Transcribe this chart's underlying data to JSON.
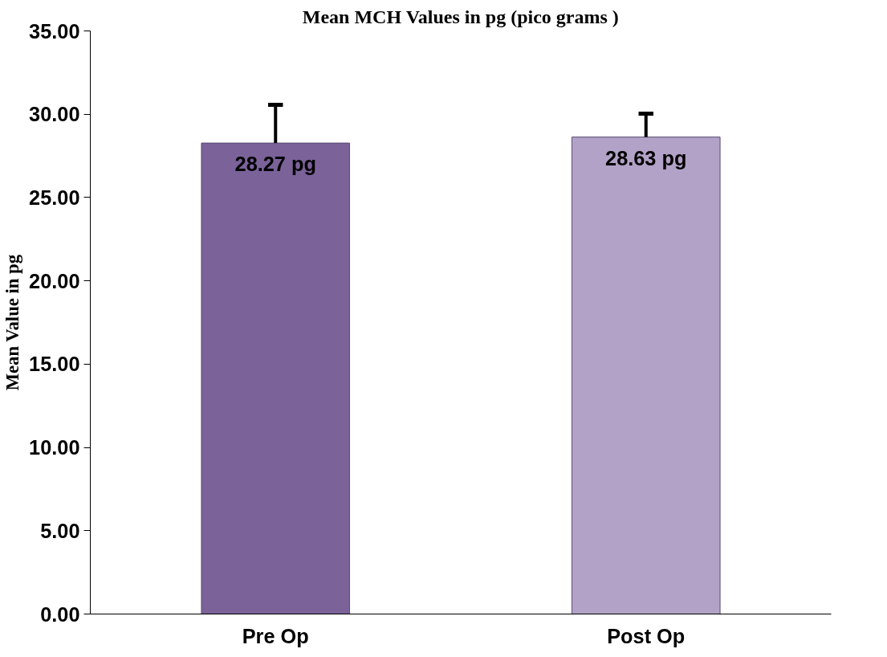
{
  "chart_data": {
    "type": "bar",
    "title": "Mean MCH Values in pg (pico grams )",
    "ylabel": "Mean Value in pg",
    "categories": [
      "Pre Op",
      "Post Op"
    ],
    "values": [
      28.27,
      28.63
    ],
    "colors": [
      "#7b6299",
      "#b3a2c7"
    ],
    "errors": [
      [
        28.27,
        30.57
      ],
      [
        28.63,
        30.03
      ]
    ],
    "value_labels": [
      "28.27 pg",
      "28.63 pg"
    ],
    "ylim": [
      0,
      35
    ],
    "yticks": [
      {
        "value": 0,
        "label": "0.00"
      },
      {
        "value": 5,
        "label": "5.00"
      },
      {
        "value": 10,
        "label": "10.00"
      },
      {
        "value": 15,
        "label": "15.00"
      },
      {
        "value": 20,
        "label": "20.00"
      },
      {
        "value": 25,
        "label": "25.00"
      },
      {
        "value": 30,
        "label": "30.00"
      },
      {
        "value": 35,
        "label": "35.00"
      }
    ],
    "grid": false
  }
}
